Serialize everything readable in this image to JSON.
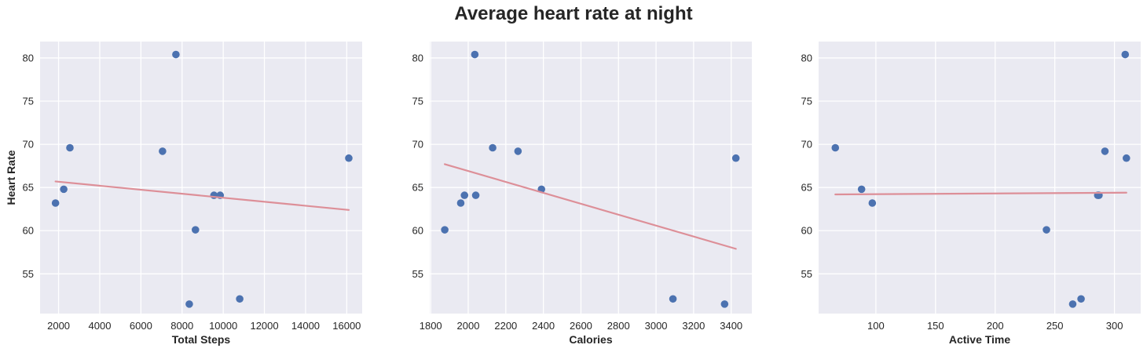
{
  "chart_data": {
    "title": "Average heart rate at night",
    "type": "scatter",
    "colors": {
      "points": "#4c72b0",
      "trend": "#dd8f98",
      "panel": "#eaeaf2",
      "grid": "#ffffff"
    },
    "grid": true,
    "panels": [
      {
        "xlabel": "Total Steps",
        "ylabel": "Heart Rate",
        "xlim": [
          1100,
          16750
        ],
        "ylim": [
          50.4,
          81.9
        ],
        "xticks": [
          2000,
          4000,
          6000,
          8000,
          10000,
          12000,
          14000,
          16000
        ],
        "yticks": [
          55,
          60,
          65,
          70,
          75,
          80
        ],
        "x": [
          1850,
          2250,
          2550,
          7050,
          7700,
          8350,
          8650,
          9550,
          9850,
          10800,
          16100
        ],
        "y": [
          63.2,
          64.8,
          69.6,
          69.2,
          80.4,
          51.5,
          60.1,
          64.1,
          64.1,
          52.1,
          68.4
        ],
        "trend": {
          "x": [
            1850,
            16100
          ],
          "y": [
            65.7,
            62.4
          ]
        }
      },
      {
        "xlabel": "Calories",
        "ylabel": "",
        "xlim": [
          1795,
          3510
        ],
        "ylim": [
          50.4,
          81.9
        ],
        "xticks": [
          1800,
          2000,
          2200,
          2400,
          2600,
          2800,
          3000,
          3200,
          3400
        ],
        "yticks": [
          55,
          60,
          65,
          70,
          75,
          80
        ],
        "x": [
          1875,
          1960,
          1980,
          2040,
          2035,
          2130,
          2265,
          2390,
          3090,
          3365,
          3425
        ],
        "y": [
          60.1,
          63.2,
          64.1,
          64.1,
          80.4,
          69.6,
          69.2,
          64.8,
          52.1,
          51.5,
          68.4
        ],
        "trend": {
          "x": [
            1875,
            3425
          ],
          "y": [
            67.7,
            57.9
          ]
        }
      },
      {
        "xlabel": "Active Time",
        "ylabel": "",
        "xlim": [
          52,
          322
        ],
        "ylim": [
          50.4,
          81.9
        ],
        "xticks": [
          100,
          150,
          200,
          250,
          300
        ],
        "yticks": [
          55,
          60,
          65,
          70,
          75,
          80
        ],
        "x": [
          66,
          88,
          97,
          243,
          265,
          272,
          286,
          287,
          292,
          309,
          310
        ],
        "y": [
          69.6,
          64.8,
          63.2,
          60.1,
          51.5,
          52.1,
          64.1,
          64.1,
          69.2,
          80.4,
          68.4
        ],
        "trend": {
          "x": [
            66,
            310
          ],
          "y": [
            64.2,
            64.4
          ]
        }
      }
    ]
  }
}
